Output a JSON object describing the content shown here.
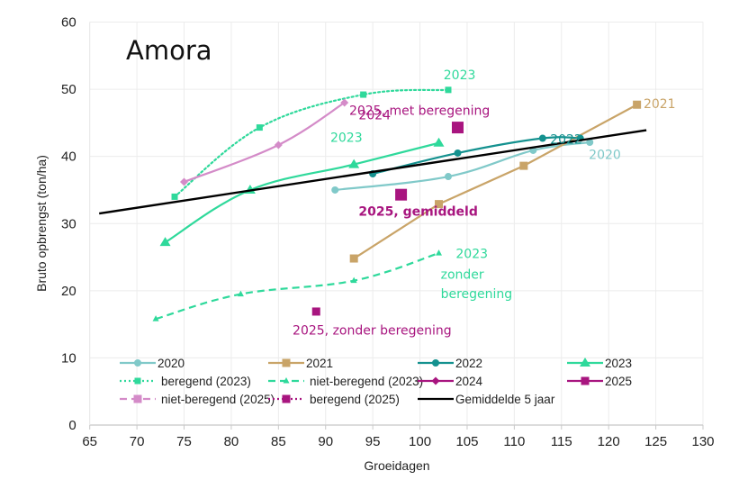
{
  "chart_data": {
    "type": "line",
    "title": "Amora",
    "xlabel": "Groeidagen",
    "ylabel": "Bruto opbrengst (ton/ha)",
    "xlim": [
      65,
      130
    ],
    "ylim": [
      0,
      60
    ],
    "xticks": [
      65,
      70,
      75,
      80,
      85,
      90,
      95,
      100,
      105,
      110,
      115,
      120,
      125,
      130
    ],
    "yticks": [
      0,
      10,
      20,
      30,
      40,
      50,
      60
    ],
    "grid": true,
    "legend_position": "bottom-inside",
    "series": [
      {
        "name": "2020",
        "color": "#80c9c9",
        "marker": "circle",
        "dash": "solid",
        "smooth": true,
        "points": [
          [
            91,
            35.0
          ],
          [
            103,
            37.0
          ],
          [
            112,
            40.9
          ],
          [
            118,
            42.1
          ]
        ]
      },
      {
        "name": "2021",
        "color": "#c9a468",
        "marker": "square",
        "dash": "solid",
        "smooth": false,
        "points": [
          [
            93,
            24.8
          ],
          [
            102,
            32.9
          ],
          [
            111,
            38.6
          ],
          [
            123,
            47.7
          ]
        ]
      },
      {
        "name": "2022",
        "color": "#14918f",
        "marker": "circle",
        "dash": "solid",
        "smooth": true,
        "points": [
          [
            95,
            37.4
          ],
          [
            104,
            40.5
          ],
          [
            113,
            42.7
          ],
          [
            117,
            42.7
          ]
        ]
      },
      {
        "name": "2023",
        "color": "#2fd99b",
        "marker": "triangle",
        "dash": "solid",
        "smooth": true,
        "points": [
          [
            73,
            27.2
          ],
          [
            82,
            35.0
          ],
          [
            93,
            38.8
          ],
          [
            102,
            42.0
          ]
        ]
      },
      {
        "name": "beregend (2023)",
        "color": "#2fd99b",
        "marker": "square-small",
        "dash": "dotted",
        "smooth": true,
        "points": [
          [
            74,
            34.0
          ],
          [
            83,
            44.3
          ],
          [
            94,
            49.2
          ],
          [
            103,
            49.9
          ]
        ]
      },
      {
        "name": "niet-beregend (2023)",
        "color": "#2fd99b",
        "marker": "triangle-small",
        "dash": "dashed",
        "smooth": true,
        "points": [
          [
            72,
            15.8
          ],
          [
            81,
            19.5
          ],
          [
            93,
            21.5
          ],
          [
            102,
            25.6
          ]
        ]
      },
      {
        "name": "2024",
        "color": "#d48bc8",
        "marker": "diamond",
        "dash": "solid",
        "smooth": true,
        "points": [
          [
            75,
            36.2
          ],
          [
            85,
            41.7
          ],
          [
            92,
            48.0
          ]
        ]
      },
      {
        "name": "2025",
        "color": "#a8157f",
        "marker": "square-large",
        "dash": "none",
        "smooth": false,
        "points": [
          [
            98,
            34.3
          ]
        ]
      },
      {
        "name": "niet-beregend (2025)",
        "color": "#d48bc8",
        "marker": "square",
        "dash": "dashed",
        "smooth": false,
        "points": [
          [
            89,
            16.9
          ]
        ],
        "point_color": "#a8157f"
      },
      {
        "name": "beregend (2025)",
        "color": "#a8157f",
        "marker": "square-large",
        "dash": "dotted",
        "smooth": false,
        "points": [
          [
            104,
            44.3
          ]
        ]
      },
      {
        "name": "Gemiddelde 5 jaar",
        "color": "#000000",
        "marker": "none",
        "dash": "solid",
        "smooth": false,
        "points": [
          [
            66,
            31.5
          ],
          [
            124,
            43.9
          ]
        ]
      }
    ],
    "annotations": [
      {
        "text": "2023",
        "x": 102.5,
        "y": 51.5,
        "color": "#2fd99b",
        "bold": false
      },
      {
        "text": "2024",
        "x": 93.5,
        "y": 45.5,
        "color": "#a8157f",
        "bold": false
      },
      {
        "text": "2025, met beregening",
        "x": 92.5,
        "y": 46.2,
        "color": "#a8157f",
        "bold": false
      },
      {
        "text": "2023",
        "x": 90.5,
        "y": 42.2,
        "color": "#2fd99b",
        "bold": false
      },
      {
        "text": "2022",
        "x": 113.8,
        "y": 41.9,
        "color": "#14918f",
        "bold": false
      },
      {
        "text": "2021",
        "x": 123.7,
        "y": 47.2,
        "color": "#c9a468",
        "bold": false
      },
      {
        "text": "2020",
        "x": 117.9,
        "y": 39.6,
        "color": "#80c9c9",
        "bold": false
      },
      {
        "text": "2025, gemiddeld",
        "x": 93.5,
        "y": 31.2,
        "color": "#a8157f",
        "bold": true
      },
      {
        "text": "2023",
        "x": 103.8,
        "y": 24.9,
        "color": "#2fd99b",
        "bold": false
      },
      {
        "text": "zonder",
        "x": 102.2,
        "y": 21.8,
        "color": "#2fd99b",
        "bold": false
      },
      {
        "text": "beregening",
        "x": 102.2,
        "y": 18.9,
        "color": "#2fd99b",
        "bold": false
      },
      {
        "text": "2025, zonder beregening",
        "x": 86.5,
        "y": 13.5,
        "color": "#a8157f",
        "bold": false
      }
    ]
  }
}
